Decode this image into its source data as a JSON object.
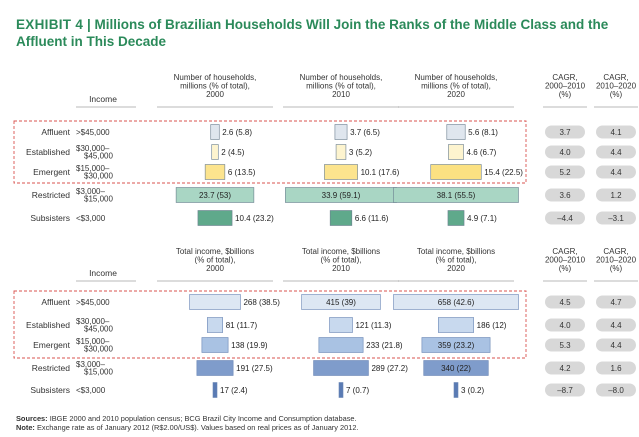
{
  "title": {
    "exhibit": "EXHIBIT 4",
    "separator": "|",
    "text": "Millions of Brazilian Households Will Join the Ranks of the Middle Class and the Affluent in This Decade"
  },
  "colors": {
    "affluent": "#dfe6ee",
    "established": "#fdf4cf",
    "emergent": "#fce48e",
    "restricted": "#a9d6c4",
    "subsisters": "#5fa98b",
    "hh_highlight": "#fbe182",
    "inc_light": "#dde7f3",
    "inc_mid": "#c8d9ee",
    "inc_mid2": "#a9c2e3",
    "inc_dark": "#7f9ccb",
    "inc_darkest": "#5a7bb4",
    "dashed": "#d9534f",
    "pill": "#d8d8d8",
    "title": "#2b8a5a"
  },
  "income_header": "Income",
  "classes": [
    {
      "name": "Affluent",
      "range": [
        ">$45,000"
      ]
    },
    {
      "name": "Established",
      "range": [
        "$30,000–",
        "$45,000"
      ]
    },
    {
      "name": "Emergent",
      "range": [
        "$15,000–",
        "$30,000"
      ]
    },
    {
      "name": "Restricted",
      "range": [
        "$3,000–",
        "$15,000"
      ]
    },
    {
      "name": "Subsisters",
      "range": [
        "<$3,000"
      ]
    }
  ],
  "chart_data": [
    {
      "type": "bar",
      "title": "Number of households, millions (% of total)",
      "categories": [
        "Affluent",
        "Established",
        "Emergent",
        "Restricted",
        "Subsisters"
      ],
      "series": [
        {
          "name": "2000",
          "header": [
            "Number of households,",
            "millions (% of total),",
            "2000"
          ],
          "values": [
            2.6,
            2,
            6,
            23.7,
            10.4
          ],
          "shares": [
            5.8,
            4.5,
            13.5,
            53,
            23.2
          ],
          "labels": [
            "2.6 (5.8)",
            "2 (4.5)",
            "6 (13.5)",
            "23.7 (53)",
            "10.4 (23.2)"
          ]
        },
        {
          "name": "2010",
          "header": [
            "Number of households,",
            "millions (% of total),",
            "2010"
          ],
          "values": [
            3.7,
            3,
            10.1,
            33.9,
            6.6
          ],
          "shares": [
            6.5,
            5.2,
            17.6,
            59.1,
            11.6
          ],
          "labels": [
            "3.7 (6.5)",
            "3 (5.2)",
            "10.1 (17.6)",
            "33.9 (59.1)",
            "6.6 (11.6)"
          ]
        },
        {
          "name": "2020",
          "header": [
            "Number of households,",
            "millions (% of total),",
            "2020"
          ],
          "values": [
            5.6,
            4.6,
            15.4,
            38.1,
            4.9
          ],
          "shares": [
            8.1,
            6.7,
            22.5,
            55.5,
            7.1
          ],
          "labels": [
            "5.6 (8.1)",
            "4.6 (6.7)",
            "15.4 (22.5)",
            "38.1 (55.5)",
            "4.9 (7.1)"
          ]
        }
      ],
      "cagr": [
        {
          "header": [
            "CAGR,",
            "2000–2010",
            "(%)"
          ],
          "values": [
            "3.7",
            "4.0",
            "5.2",
            "3.6",
            "–4.4"
          ]
        },
        {
          "header": [
            "CAGR,",
            "2010–2020",
            "(%)"
          ],
          "values": [
            "4.1",
            "4.4",
            "4.4",
            "1.2",
            "–3.1"
          ]
        }
      ]
    },
    {
      "type": "bar",
      "title": "Total income, $billions (% of total)",
      "categories": [
        "Affluent",
        "Established",
        "Emergent",
        "Restricted",
        "Subsisters"
      ],
      "series": [
        {
          "name": "2000",
          "header": [
            "Total income, $billions",
            "(% of total),",
            "2000"
          ],
          "values": [
            268,
            81,
            138,
            191,
            17
          ],
          "shares": [
            38.5,
            11.7,
            19.9,
            27.5,
            2.4
          ],
          "labels": [
            "268 (38.5)",
            "81 (11.7)",
            "138 (19.9)",
            "191 (27.5)",
            "17 (2.4)"
          ]
        },
        {
          "name": "2010",
          "header": [
            "Total income, $billions",
            "(% of total),",
            "2010"
          ],
          "values": [
            415,
            121,
            233,
            289,
            7
          ],
          "shares": [
            39,
            11.3,
            21.8,
            27.2,
            0.7
          ],
          "labels": [
            "415 (39)",
            "121 (11.3)",
            "233 (21.8)",
            "289 (27.2)",
            "7 (0.7)"
          ]
        },
        {
          "name": "2020",
          "header": [
            "Total income, $billions",
            "(% of total),",
            "2020"
          ],
          "values": [
            658,
            186,
            359,
            340,
            3
          ],
          "shares": [
            42.6,
            12,
            23.2,
            22,
            0.2
          ],
          "labels": [
            "658 (42.6)",
            "186 (12)",
            "359 (23.2)",
            "340 (22)",
            "3 (0.2)"
          ]
        }
      ],
      "cagr": [
        {
          "header": [
            "CAGR,",
            "2000–2010",
            "(%)"
          ],
          "values": [
            "4.5",
            "4.0",
            "5.3",
            "4.2",
            "–8.7"
          ]
        },
        {
          "header": [
            "CAGR,",
            "2010–2020",
            "(%)"
          ],
          "values": [
            "4.7",
            "4.4",
            "4.4",
            "1.6",
            "–8.0"
          ]
        }
      ]
    }
  ],
  "footer": {
    "sources_label": "Sources:",
    "sources_text": "IBGE 2000 and 2010 population census; BCG Brazil City Income and Consumption database.",
    "note_label": "Note:",
    "note_text": "Exchange rate as of January 2012 (R$2.00/US$). Values based on real prices as of January 2012."
  }
}
